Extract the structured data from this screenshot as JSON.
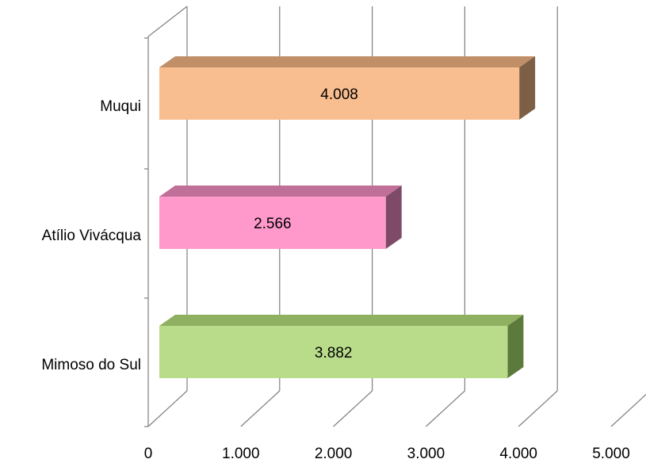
{
  "chart_data": {
    "type": "bar",
    "orientation": "horizontal",
    "three_d": true,
    "categories": [
      "Mimoso do Sul",
      "Atílio Vivácqua",
      "Muqui"
    ],
    "values": [
      3882,
      2566,
      4008
    ],
    "value_labels": [
      "3.882",
      "2.566",
      "4.008"
    ],
    "x_ticks": [
      0,
      1000,
      2000,
      3000,
      4000,
      5000
    ],
    "x_tick_labels": [
      "0",
      "1.000",
      "2.000",
      "3.000",
      "4.000",
      "5.000"
    ],
    "xlim": [
      0,
      5000
    ],
    "grid": true,
    "legend": "none",
    "colors": {
      "Mimoso do Sul": {
        "front": "#b9dc8b",
        "top": "#8fb060",
        "side": "#5c7a3c"
      },
      "Atílio Vivácqua": {
        "front": "#ff99cc",
        "top": "#c07098",
        "side": "#7f4a68"
      },
      "Muqui": {
        "front": "#f9be8f",
        "top": "#c08f68",
        "side": "#7d5f46"
      }
    },
    "gridline_color": "#7f7f7f"
  }
}
